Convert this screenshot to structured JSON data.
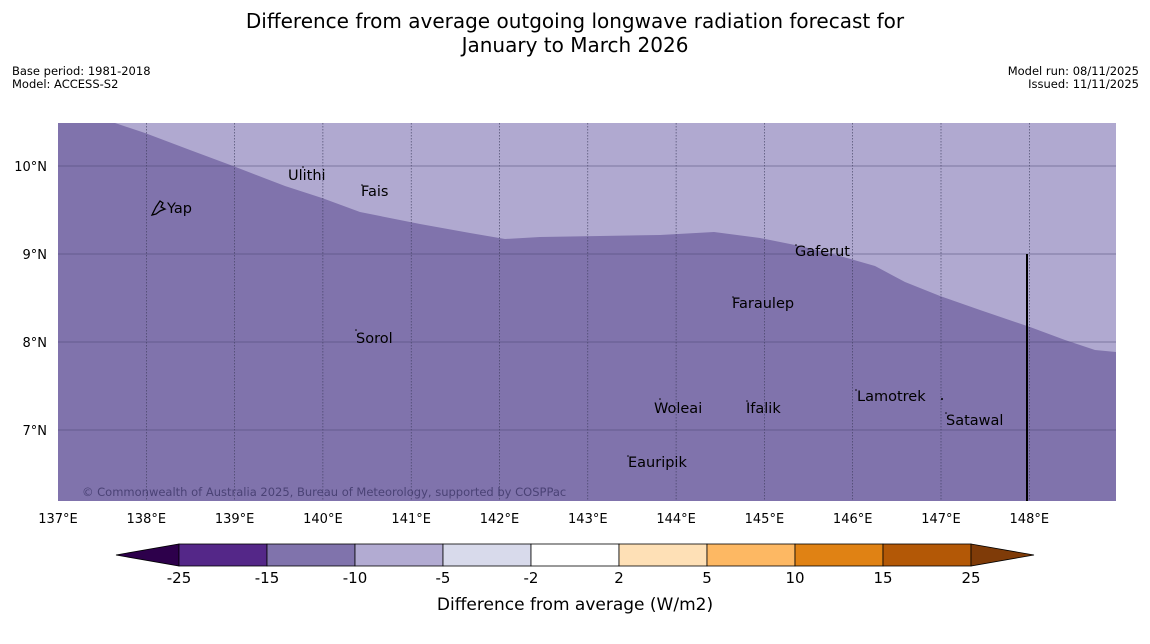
{
  "title": {
    "line1": "Difference from average outgoing longwave radiation forecast for",
    "line2": "January to March 2026"
  },
  "meta": {
    "base_period": "Base period: 1981-2018",
    "model": "Model: ACCESS-S2",
    "model_run": "Model run: 08/11/2025",
    "issued": "Issued: 11/11/2025"
  },
  "map": {
    "lon_ticks": [
      "137°E",
      "138°E",
      "139°E",
      "140°E",
      "141°E",
      "142°E",
      "143°E",
      "144°E",
      "145°E",
      "146°E",
      "147°E",
      "148°E"
    ],
    "lat_ticks": [
      "10°N",
      "9°N",
      "8°N",
      "7°N"
    ],
    "places": [
      {
        "name": "Yap"
      },
      {
        "name": "Ulithi"
      },
      {
        "name": "Fais"
      },
      {
        "name": "Gaferut"
      },
      {
        "name": "Faraulep"
      },
      {
        "name": "Sorol"
      },
      {
        "name": "Lamotrek"
      },
      {
        "name": "Woleai"
      },
      {
        "name": "Ifalik"
      },
      {
        "name": "Satawal"
      },
      {
        "name": "Eauripik"
      }
    ],
    "copyright": "© Commonwealth of Australia 2025, Bureau of Meteorology, supported by COSPPac",
    "regions": [
      {
        "category": "-15 to -10",
        "color": "#8073ac"
      },
      {
        "category": "-10 to -5",
        "color": "#b2abd2"
      }
    ]
  },
  "legend": {
    "title": "Difference from average (W/m2)",
    "ticks": [
      "-25",
      "-15",
      "-10",
      "-5",
      "-2",
      "2",
      "5",
      "10",
      "15",
      "25"
    ],
    "colors": [
      "#542788",
      "#8073ac",
      "#b2abd2",
      "#d8daeb",
      "#ffffff",
      "#fee0b6",
      "#fdb863",
      "#e08214",
      "#b35806"
    ],
    "extend_low": "#2d004b",
    "extend_high": "#7f3b08"
  }
}
